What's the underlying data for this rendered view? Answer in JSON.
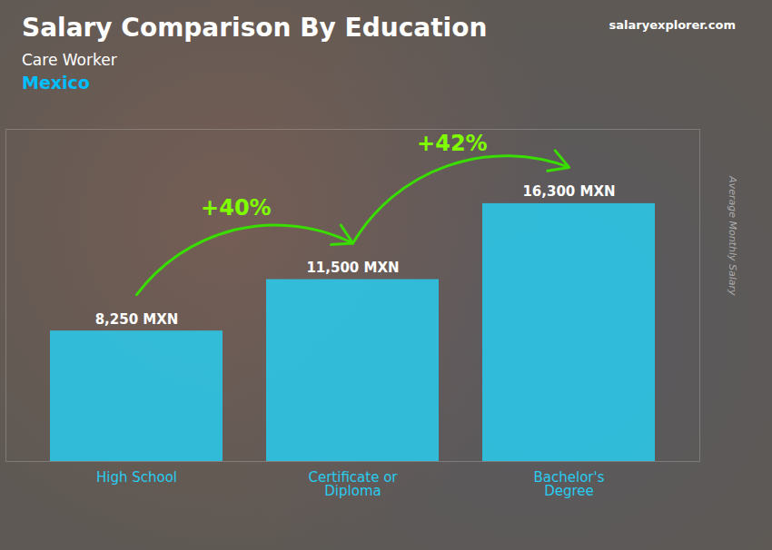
{
  "chart_data": {
    "type": "bar",
    "title": "Salary Comparison By Education",
    "subtitle": [
      "Care Worker",
      "Mexico"
    ],
    "caption": "salaryexplorer.com",
    "ylabel": "Average Monthly Salary",
    "categories": [
      "High School",
      "Certificate or\nDiploma",
      "Bachelor's\nDegree"
    ],
    "values": [
      8250,
      11500,
      16300
    ],
    "value_labels": [
      "8,250 MXN",
      "11,500 MXN",
      "16,300 MXN"
    ],
    "data_labels": true,
    "annotations": [
      "+40%",
      "+42%"
    ],
    "color": "#29CCF0",
    "ylim": [
      0,
      21000
    ],
    "tick_labels": "x",
    "grid": false
  }
}
